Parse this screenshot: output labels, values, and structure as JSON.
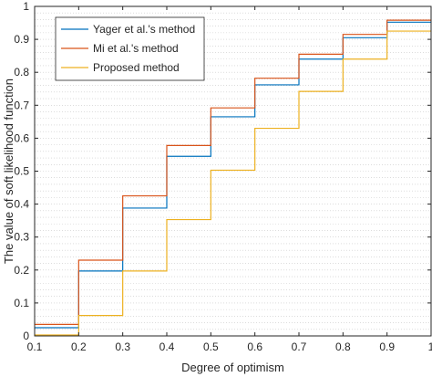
{
  "chart_data": {
    "type": "line",
    "step": true,
    "xlabel": "Degree of optimism",
    "ylabel": "The value of soft likelihood function",
    "xlim": [
      0.1,
      1
    ],
    "ylim": [
      0,
      1
    ],
    "xticks": [
      "0.1",
      "0.2",
      "0.3",
      "0.4",
      "0.5",
      "0.6",
      "0.7",
      "0.8",
      "0.9",
      "1"
    ],
    "yticks": [
      "0",
      "0.1",
      "0.2",
      "0.3",
      "0.4",
      "0.5",
      "0.6",
      "0.7",
      "0.8",
      "0.9",
      "1"
    ],
    "grid": "horizontal minor, dotted",
    "legend_position": "top-left",
    "x": [
      0.1,
      0.2,
      0.3,
      0.4,
      0.5,
      0.6,
      0.7,
      0.8,
      0.9,
      1.0
    ],
    "series": [
      {
        "name": "Yager et al.'s method",
        "color": "#0072bd",
        "values": [
          0.025,
          0.197,
          0.388,
          0.545,
          0.665,
          0.762,
          0.84,
          0.905,
          0.952,
          0.952
        ]
      },
      {
        "name": "Mi et al.'s method",
        "color": "#d95319",
        "values": [
          0.035,
          0.23,
          0.425,
          0.578,
          0.692,
          0.782,
          0.855,
          0.915,
          0.958,
          0.958
        ]
      },
      {
        "name": "Proposed method",
        "color": "#edb120",
        "values": [
          0.003,
          0.062,
          0.197,
          0.353,
          0.503,
          0.63,
          0.742,
          0.84,
          0.925,
          0.925
        ]
      }
    ]
  }
}
